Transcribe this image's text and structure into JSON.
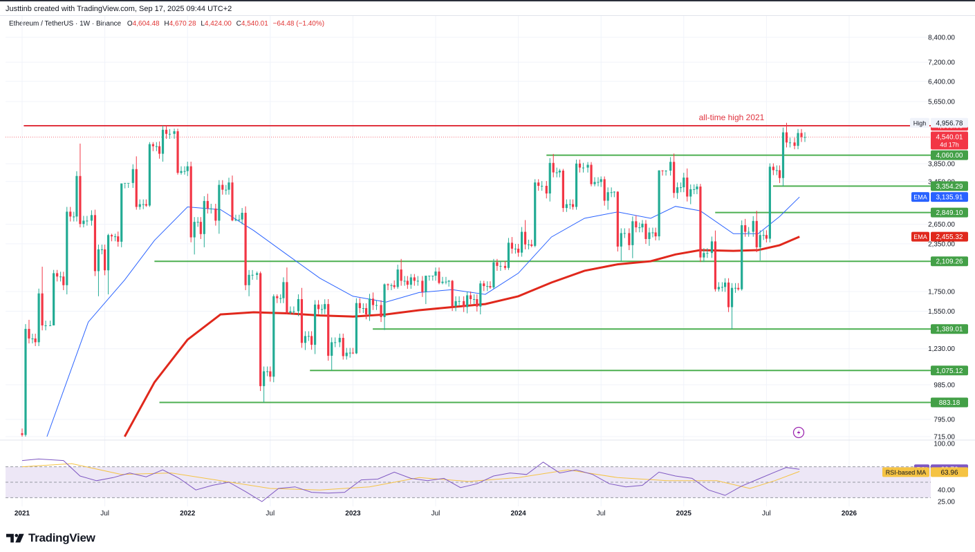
{
  "credit": "Justtinb created with TradingView.com, Sep 17, 2025 09:44 UTC+2",
  "legend": {
    "symbol": "Ethereum / TetherUS · 1W · Binance",
    "open_key": "O",
    "open": "4,604.48",
    "high_key": "H",
    "high": "4,670.28",
    "low_key": "L",
    "low": "4,424.00",
    "close_key": "C",
    "close": "4,540.01",
    "change": "−64.48 (−1.40%)"
  },
  "brand": "TradingView",
  "colors": {
    "up": "#22ab94",
    "down": "#f23645",
    "ath_line": "#e0323e",
    "support": "#4caf50",
    "ema_fast": "#2962ff",
    "ema_slow": "#e0281c",
    "rsi": "#7e57c2",
    "rsi_ma": "#f5c343",
    "price_tag": "#f23645",
    "support_tag": "#43a047",
    "ema_fast_tag": "#2962ff",
    "ema_slow_tag": "#e0281c",
    "rsi_band": "#ede7f6"
  },
  "chart_data": {
    "type": "candlestick",
    "interval": "1W",
    "title": "Ethereum / TetherUS · 1W · Binance",
    "price_axis_ticks": [
      "8,400.00",
      "7,200.00",
      "6,400.00",
      "5,650.00",
      "3,850.00",
      "3,450.00",
      "2,650.00",
      "2,350.00",
      "1,750.00",
      "1,550.00",
      "1,230.00",
      "985.00",
      "795.00",
      "715.00"
    ],
    "time_axis_labels": [
      {
        "label": "2021",
        "t": 2021.0
      },
      {
        "label": "Jul",
        "t": 2021.5
      },
      {
        "label": "2022",
        "t": 2022.0
      },
      {
        "label": "Jul",
        "t": 2022.5
      },
      {
        "label": "2023",
        "t": 2023.0
      },
      {
        "label": "Jul",
        "t": 2023.5
      },
      {
        "label": "2024",
        "t": 2024.0
      },
      {
        "label": "Jul",
        "t": 2024.5
      },
      {
        "label": "2025",
        "t": 2025.0
      },
      {
        "label": "Jul",
        "t": 2025.5
      },
      {
        "label": "2026",
        "t": 2026.0
      }
    ],
    "annotation": "all-time high 2021",
    "high_label": "High",
    "high_value": "4,956.78",
    "last_price": "4,540.01",
    "countdown": "4d 17h",
    "horizontal_levels": [
      {
        "price": 4868,
        "label": "4,868.00",
        "kind": "ath",
        "t_start": 2021.01
      },
      {
        "price": 4060,
        "label": "4,060.00",
        "kind": "support",
        "t_start": 2024.17
      },
      {
        "price": 3354.29,
        "label": "3,354.29",
        "kind": "support",
        "t_start": 2025.54
      },
      {
        "price": 2849.1,
        "label": "2,849.10",
        "kind": "support",
        "t_start": 2025.19
      },
      {
        "price": 2109.26,
        "label": "2,109.26",
        "kind": "support",
        "t_start": 2021.8
      },
      {
        "price": 1389.01,
        "label": "1,389.01",
        "kind": "support",
        "t_start": 2023.12
      },
      {
        "price": 1075.12,
        "label": "1,075.12",
        "kind": "support",
        "t_start": 2022.74
      },
      {
        "price": 883.18,
        "label": "883.18",
        "kind": "support",
        "t_start": 2021.83
      }
    ],
    "ema_labels": [
      {
        "name": "EMA",
        "value": "3,135.91",
        "price": 3135.91,
        "tag": "ema_fast"
      },
      {
        "name": "EMA",
        "value": "2,455.32",
        "price": 2455.32,
        "tag": "ema_slow"
      }
    ],
    "candles_monthly": [
      {
        "t": 2021.0,
        "o": 730,
        "h": 1470,
        "l": 715,
        "c": 1310
      },
      {
        "t": 2021.08,
        "o": 1310,
        "h": 2040,
        "l": 1250,
        "c": 1420
      },
      {
        "t": 2021.17,
        "o": 1420,
        "h": 2000,
        "l": 1420,
        "c": 1920
      },
      {
        "t": 2021.25,
        "o": 1920,
        "h": 2950,
        "l": 1720,
        "c": 2780
      },
      {
        "t": 2021.33,
        "o": 2780,
        "h": 4360,
        "l": 2600,
        "c": 2710
      },
      {
        "t": 2021.42,
        "o": 2710,
        "h": 2900,
        "l": 1700,
        "c": 2270
      },
      {
        "t": 2021.5,
        "o": 2270,
        "h": 2500,
        "l": 1720,
        "c": 2460
      },
      {
        "t": 2021.58,
        "o": 2460,
        "h": 3400,
        "l": 2300,
        "c": 3420
      },
      {
        "t": 2021.67,
        "o": 3420,
        "h": 4030,
        "l": 2900,
        "c": 3000
      },
      {
        "t": 2021.75,
        "o": 3000,
        "h": 4400,
        "l": 2950,
        "c": 4290
      },
      {
        "t": 2021.83,
        "o": 4290,
        "h": 4868,
        "l": 3900,
        "c": 4630
      },
      {
        "t": 2021.92,
        "o": 4630,
        "h": 4780,
        "l": 3600,
        "c": 3680
      },
      {
        "t": 2022.0,
        "o": 3680,
        "h": 3900,
        "l": 2200,
        "c": 2690
      },
      {
        "t": 2022.08,
        "o": 2690,
        "h": 3200,
        "l": 2300,
        "c": 2920
      },
      {
        "t": 2022.17,
        "o": 2920,
        "h": 3480,
        "l": 2500,
        "c": 3280
      },
      {
        "t": 2022.25,
        "o": 3280,
        "h": 3580,
        "l": 2700,
        "c": 2730
      },
      {
        "t": 2022.33,
        "o": 2730,
        "h": 2960,
        "l": 1700,
        "c": 1940
      },
      {
        "t": 2022.42,
        "o": 1940,
        "h": 1980,
        "l": 883,
        "c": 1070
      },
      {
        "t": 2022.5,
        "o": 1070,
        "h": 1720,
        "l": 1000,
        "c": 1680
      },
      {
        "t": 2022.58,
        "o": 1680,
        "h": 2030,
        "l": 1520,
        "c": 1550
      },
      {
        "t": 2022.67,
        "o": 1550,
        "h": 1790,
        "l": 1220,
        "c": 1330
      },
      {
        "t": 2022.75,
        "o": 1330,
        "h": 1660,
        "l": 1190,
        "c": 1570
      },
      {
        "t": 2022.83,
        "o": 1570,
        "h": 1670,
        "l": 1075,
        "c": 1280
      },
      {
        "t": 2022.92,
        "o": 1280,
        "h": 1350,
        "l": 1150,
        "c": 1200
      },
      {
        "t": 2023.0,
        "o": 1200,
        "h": 1680,
        "l": 1190,
        "c": 1580
      },
      {
        "t": 2023.08,
        "o": 1580,
        "h": 1740,
        "l": 1460,
        "c": 1610
      },
      {
        "t": 2023.17,
        "o": 1610,
        "h": 1840,
        "l": 1380,
        "c": 1820
      },
      {
        "t": 2023.25,
        "o": 1820,
        "h": 2140,
        "l": 1780,
        "c": 1870
      },
      {
        "t": 2023.33,
        "o": 1870,
        "h": 1950,
        "l": 1780,
        "c": 1870
      },
      {
        "t": 2023.42,
        "o": 1870,
        "h": 1930,
        "l": 1620,
        "c": 1930
      },
      {
        "t": 2023.5,
        "o": 1930,
        "h": 2030,
        "l": 1830,
        "c": 1860
      },
      {
        "t": 2023.58,
        "o": 1860,
        "h": 1880,
        "l": 1550,
        "c": 1650
      },
      {
        "t": 2023.67,
        "o": 1650,
        "h": 1750,
        "l": 1530,
        "c": 1670
      },
      {
        "t": 2023.75,
        "o": 1670,
        "h": 1870,
        "l": 1520,
        "c": 1810
      },
      {
        "t": 2023.83,
        "o": 1810,
        "h": 2140,
        "l": 1780,
        "c": 2050
      },
      {
        "t": 2023.92,
        "o": 2050,
        "h": 2450,
        "l": 2000,
        "c": 2280
      },
      {
        "t": 2024.0,
        "o": 2280,
        "h": 2720,
        "l": 2170,
        "c": 2340
      },
      {
        "t": 2024.08,
        "o": 2340,
        "h": 3500,
        "l": 2300,
        "c": 3360
      },
      {
        "t": 2024.17,
        "o": 3360,
        "h": 4090,
        "l": 3050,
        "c": 3650
      },
      {
        "t": 2024.25,
        "o": 3650,
        "h": 3730,
        "l": 2860,
        "c": 3000
      },
      {
        "t": 2024.33,
        "o": 3000,
        "h": 3950,
        "l": 2900,
        "c": 3760
      },
      {
        "t": 2024.42,
        "o": 3760,
        "h": 3890,
        "l": 3350,
        "c": 3440
      },
      {
        "t": 2024.5,
        "o": 3440,
        "h": 3560,
        "l": 2900,
        "c": 3230
      },
      {
        "t": 2024.58,
        "o": 3230,
        "h": 3250,
        "l": 2110,
        "c": 2510
      },
      {
        "t": 2024.67,
        "o": 2510,
        "h": 2800,
        "l": 2150,
        "c": 2600
      },
      {
        "t": 2024.75,
        "o": 2600,
        "h": 2720,
        "l": 2320,
        "c": 2520
      },
      {
        "t": 2024.83,
        "o": 2520,
        "h": 3700,
        "l": 2400,
        "c": 3690
      },
      {
        "t": 2024.92,
        "o": 3690,
        "h": 4100,
        "l": 3100,
        "c": 3330
      },
      {
        "t": 2025.0,
        "o": 3330,
        "h": 3740,
        "l": 3000,
        "c": 3290
      },
      {
        "t": 2025.08,
        "o": 3290,
        "h": 3400,
        "l": 2100,
        "c": 2220
      },
      {
        "t": 2025.17,
        "o": 2220,
        "h": 2550,
        "l": 1750,
        "c": 1800
      },
      {
        "t": 2025.25,
        "o": 1800,
        "h": 1900,
        "l": 1389,
        "c": 1790
      },
      {
        "t": 2025.33,
        "o": 1790,
        "h": 2740,
        "l": 1760,
        "c": 2530
      },
      {
        "t": 2025.42,
        "o": 2530,
        "h": 2880,
        "l": 2120,
        "c": 2480
      },
      {
        "t": 2025.5,
        "o": 2480,
        "h": 3860,
        "l": 2370,
        "c": 3700
      },
      {
        "t": 2025.58,
        "o": 3700,
        "h": 4956.78,
        "l": 3350,
        "c": 4390
      },
      {
        "t": 2025.67,
        "o": 4390,
        "h": 4770,
        "l": 4210,
        "c": 4540.01
      }
    ],
    "ema_fast": [
      {
        "t": 2021.15,
        "v": 715
      },
      {
        "t": 2021.4,
        "v": 1450
      },
      {
        "t": 2021.62,
        "v": 1880
      },
      {
        "t": 2021.8,
        "v": 2400
      },
      {
        "t": 2022.0,
        "v": 2950
      },
      {
        "t": 2022.2,
        "v": 2900
      },
      {
        "t": 2022.4,
        "v": 2550
      },
      {
        "t": 2022.6,
        "v": 2200
      },
      {
        "t": 2022.8,
        "v": 1900
      },
      {
        "t": 2023.0,
        "v": 1700
      },
      {
        "t": 2023.2,
        "v": 1640
      },
      {
        "t": 2023.4,
        "v": 1740
      },
      {
        "t": 2023.6,
        "v": 1770
      },
      {
        "t": 2023.8,
        "v": 1720
      },
      {
        "t": 2024.0,
        "v": 1960
      },
      {
        "t": 2024.2,
        "v": 2450
      },
      {
        "t": 2024.4,
        "v": 2750
      },
      {
        "t": 2024.6,
        "v": 2860
      },
      {
        "t": 2024.8,
        "v": 2750
      },
      {
        "t": 2024.95,
        "v": 2960
      },
      {
        "t": 2025.1,
        "v": 2880
      },
      {
        "t": 2025.3,
        "v": 2500
      },
      {
        "t": 2025.45,
        "v": 2500
      },
      {
        "t": 2025.58,
        "v": 2780
      },
      {
        "t": 2025.7,
        "v": 3135.91
      }
    ],
    "ema_slow": [
      {
        "t": 2021.62,
        "v": 715
      },
      {
        "t": 2021.8,
        "v": 1000
      },
      {
        "t": 2022.0,
        "v": 1300
      },
      {
        "t": 2022.2,
        "v": 1520
      },
      {
        "t": 2022.4,
        "v": 1540
      },
      {
        "t": 2022.6,
        "v": 1530
      },
      {
        "t": 2022.8,
        "v": 1510
      },
      {
        "t": 2023.0,
        "v": 1500
      },
      {
        "t": 2023.2,
        "v": 1520
      },
      {
        "t": 2023.4,
        "v": 1560
      },
      {
        "t": 2023.6,
        "v": 1590
      },
      {
        "t": 2023.8,
        "v": 1620
      },
      {
        "t": 2024.0,
        "v": 1700
      },
      {
        "t": 2024.2,
        "v": 1850
      },
      {
        "t": 2024.4,
        "v": 1990
      },
      {
        "t": 2024.6,
        "v": 2070
      },
      {
        "t": 2024.8,
        "v": 2110
      },
      {
        "t": 2024.95,
        "v": 2200
      },
      {
        "t": 2025.1,
        "v": 2260
      },
      {
        "t": 2025.3,
        "v": 2250
      },
      {
        "t": 2025.45,
        "v": 2260
      },
      {
        "t": 2025.58,
        "v": 2330
      },
      {
        "t": 2025.7,
        "v": 2455.32
      }
    ],
    "rsi": {
      "label": "RSI",
      "value": "66.76",
      "ma_label": "RSI-based MA",
      "ma_value": "63.96",
      "axis_ticks": [
        "100.00",
        "40.00",
        "25.00"
      ],
      "band": [
        30,
        70
      ],
      "series": [
        {
          "t": 2021.0,
          "v": 78
        },
        {
          "t": 2021.1,
          "v": 80
        },
        {
          "t": 2021.25,
          "v": 78
        },
        {
          "t": 2021.35,
          "v": 58
        },
        {
          "t": 2021.45,
          "v": 52
        },
        {
          "t": 2021.55,
          "v": 56
        },
        {
          "t": 2021.65,
          "v": 62
        },
        {
          "t": 2021.75,
          "v": 57
        },
        {
          "t": 2021.85,
          "v": 66
        },
        {
          "t": 2021.95,
          "v": 55
        },
        {
          "t": 2022.05,
          "v": 40
        },
        {
          "t": 2022.15,
          "v": 46
        },
        {
          "t": 2022.25,
          "v": 50
        },
        {
          "t": 2022.35,
          "v": 38
        },
        {
          "t": 2022.45,
          "v": 25
        },
        {
          "t": 2022.55,
          "v": 42
        },
        {
          "t": 2022.65,
          "v": 44
        },
        {
          "t": 2022.75,
          "v": 37
        },
        {
          "t": 2022.85,
          "v": 36
        },
        {
          "t": 2022.95,
          "v": 37
        },
        {
          "t": 2023.05,
          "v": 53
        },
        {
          "t": 2023.15,
          "v": 54
        },
        {
          "t": 2023.25,
          "v": 63
        },
        {
          "t": 2023.35,
          "v": 55
        },
        {
          "t": 2023.45,
          "v": 52
        },
        {
          "t": 2023.55,
          "v": 55
        },
        {
          "t": 2023.65,
          "v": 43
        },
        {
          "t": 2023.75,
          "v": 48
        },
        {
          "t": 2023.85,
          "v": 58
        },
        {
          "t": 2023.95,
          "v": 62
        },
        {
          "t": 2024.05,
          "v": 60
        },
        {
          "t": 2024.15,
          "v": 76
        },
        {
          "t": 2024.25,
          "v": 62
        },
        {
          "t": 2024.35,
          "v": 66
        },
        {
          "t": 2024.45,
          "v": 60
        },
        {
          "t": 2024.55,
          "v": 48
        },
        {
          "t": 2024.65,
          "v": 44
        },
        {
          "t": 2024.75,
          "v": 46
        },
        {
          "t": 2024.85,
          "v": 63
        },
        {
          "t": 2024.95,
          "v": 58
        },
        {
          "t": 2025.05,
          "v": 55
        },
        {
          "t": 2025.15,
          "v": 40
        },
        {
          "t": 2025.25,
          "v": 33
        },
        {
          "t": 2025.35,
          "v": 45
        },
        {
          "t": 2025.45,
          "v": 54
        },
        {
          "t": 2025.55,
          "v": 63
        },
        {
          "t": 2025.62,
          "v": 69
        },
        {
          "t": 2025.7,
          "v": 66.76
        }
      ],
      "ma_series": [
        {
          "t": 2021.0,
          "v": 70
        },
        {
          "t": 2021.3,
          "v": 74
        },
        {
          "t": 2021.6,
          "v": 60
        },
        {
          "t": 2021.9,
          "v": 62
        },
        {
          "t": 2022.2,
          "v": 52
        },
        {
          "t": 2022.5,
          "v": 42
        },
        {
          "t": 2022.8,
          "v": 40
        },
        {
          "t": 2023.1,
          "v": 44
        },
        {
          "t": 2023.4,
          "v": 56
        },
        {
          "t": 2023.7,
          "v": 51
        },
        {
          "t": 2024.0,
          "v": 56
        },
        {
          "t": 2024.3,
          "v": 66
        },
        {
          "t": 2024.6,
          "v": 56
        },
        {
          "t": 2024.9,
          "v": 52
        },
        {
          "t": 2025.2,
          "v": 52
        },
        {
          "t": 2025.4,
          "v": 42
        },
        {
          "t": 2025.55,
          "v": 52
        },
        {
          "t": 2025.7,
          "v": 63.96
        }
      ]
    }
  }
}
